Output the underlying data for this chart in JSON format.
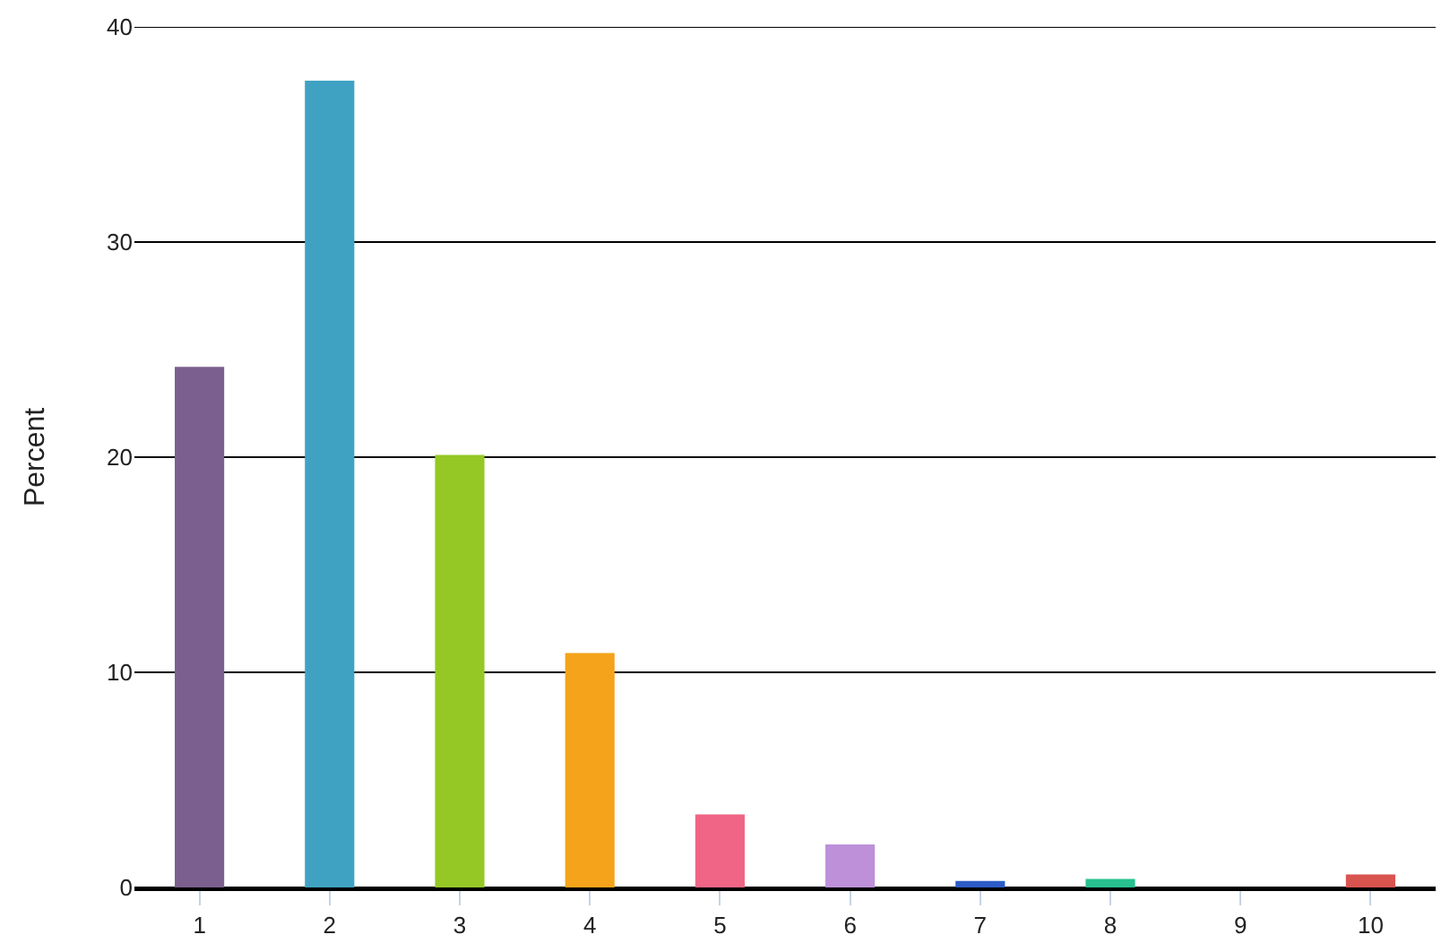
{
  "chart_data": {
    "type": "bar",
    "ylabel": "Percent",
    "categories": [
      "1",
      "2",
      "3",
      "4",
      "5",
      "6",
      "7",
      "8",
      "9",
      "10"
    ],
    "values": [
      24.2,
      37.5,
      20.1,
      10.9,
      3.4,
      2.0,
      0.3,
      0.4,
      0,
      0.6
    ],
    "colors": [
      "#7b5f8e",
      "#3fa2c2",
      "#95c825",
      "#f5a31a",
      "#f06585",
      "#bd90d9",
      "#2d5cc7",
      "#27c08e",
      "#888888",
      "#d9534f"
    ],
    "ylim": [
      0,
      40
    ],
    "yticks": [
      0,
      10,
      20,
      30,
      40
    ],
    "grid": "y"
  }
}
